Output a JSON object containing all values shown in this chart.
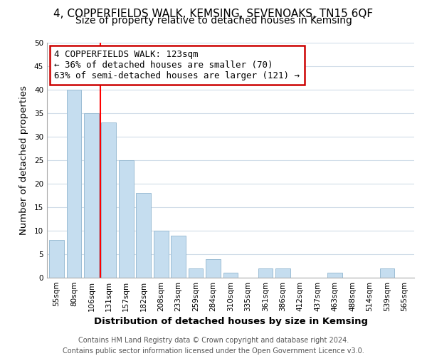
{
  "title": "4, COPPERFIELDS WALK, KEMSING, SEVENOAKS, TN15 6QF",
  "subtitle": "Size of property relative to detached houses in Kemsing",
  "xlabel": "Distribution of detached houses by size in Kemsing",
  "ylabel": "Number of detached properties",
  "bar_labels": [
    "55sqm",
    "80sqm",
    "106sqm",
    "131sqm",
    "157sqm",
    "182sqm",
    "208sqm",
    "233sqm",
    "259sqm",
    "284sqm",
    "310sqm",
    "335sqm",
    "361sqm",
    "386sqm",
    "412sqm",
    "437sqm",
    "463sqm",
    "488sqm",
    "514sqm",
    "539sqm",
    "565sqm"
  ],
  "bar_values": [
    8,
    40,
    35,
    33,
    25,
    18,
    10,
    9,
    2,
    4,
    1,
    0,
    2,
    2,
    0,
    0,
    1,
    0,
    0,
    2,
    0
  ],
  "bar_color": "#c5ddef",
  "bar_edge_color": "#9bbdd4",
  "vline_color": "red",
  "vline_x": 2.5,
  "annotation_text": "4 COPPERFIELDS WALK: 123sqm\n← 36% of detached houses are smaller (70)\n63% of semi-detached houses are larger (121) →",
  "annotation_box_color": "white",
  "annotation_box_edge": "#cc0000",
  "ylim": [
    0,
    50
  ],
  "yticks": [
    0,
    5,
    10,
    15,
    20,
    25,
    30,
    35,
    40,
    45,
    50
  ],
  "footer": "Contains HM Land Registry data © Crown copyright and database right 2024.\nContains public sector information licensed under the Open Government Licence v3.0.",
  "grid_color": "#d0dce8",
  "title_fontsize": 11,
  "subtitle_fontsize": 10,
  "axis_label_fontsize": 9.5,
  "tick_fontsize": 7.5,
  "annotation_fontsize": 9,
  "footer_fontsize": 7
}
